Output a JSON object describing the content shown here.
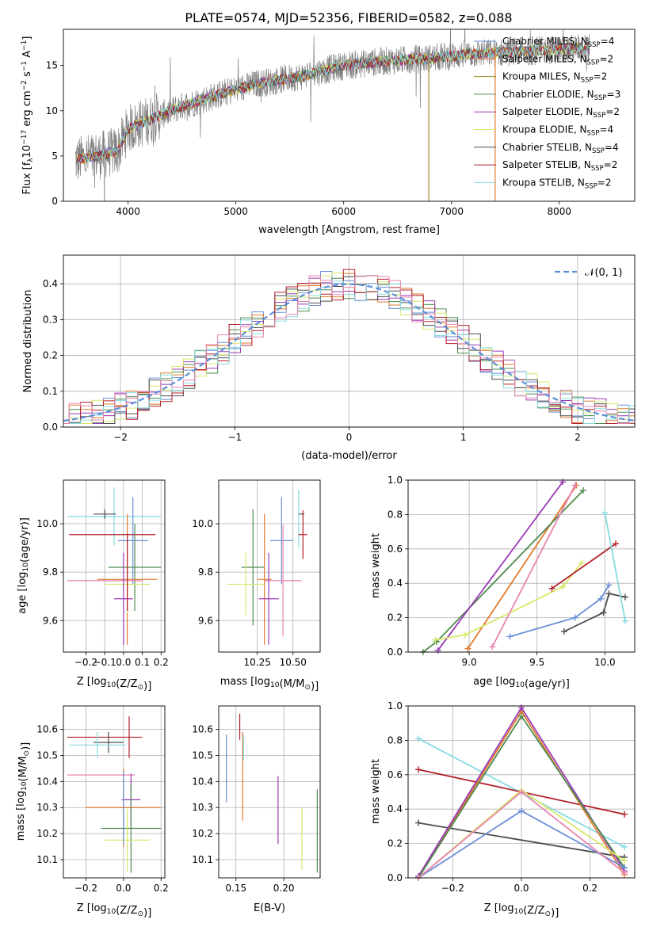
{
  "figure_title": "PLATE=0574, MJD=52356, FIBERID=0582, z=0.088",
  "colors": {
    "chabrier_miles": "#6a8fd8",
    "salpeter_miles": "#e07a2e",
    "kroupa_miles": "#9a8a2a",
    "chabrier_elodie": "#4f8a4f",
    "salpeter_elodie": "#9b3ab8",
    "kroupa_elodie": "#d7e86a",
    "chabrier_stelib": "#4d4d4d",
    "salpeter_stelib": "#b3202a",
    "kroupa_stelib": "#86dbe0",
    "pink_model": "#e884b0",
    "data": "#808080",
    "normal_curve": "#5b8fd9"
  },
  "chart_data": [
    {
      "id": "spectrum",
      "type": "line",
      "xlabel": "wavelength [Angstrom, rest frame]",
      "ylabel": "Flux [f_λ 10^-17 erg cm^-2 s^-1 A^-1]",
      "xlim": [
        3400,
        8700
      ],
      "ylim": [
        0,
        19
      ],
      "xticks": [
        4000,
        5000,
        6000,
        7000,
        8000
      ],
      "yticks": [
        0,
        5,
        10,
        15
      ],
      "continuum": {
        "x": [
          3500,
          3700,
          3900,
          4000,
          4200,
          4500,
          4900,
          5200,
          5600,
          6000,
          6400,
          6800,
          7200,
          7600,
          8000,
          8300
        ],
        "y": [
          4.5,
          5.0,
          5.5,
          8.0,
          9.0,
          10.5,
          12.0,
          13.0,
          13.8,
          15.0,
          15.5,
          15.8,
          16.3,
          16.5,
          16.8,
          17.0
        ]
      },
      "legend": [
        {
          "label": "Chabrier MILES, N",
          "sub": "SSP",
          "suffix": "=4",
          "color_key": "chabrier_miles"
        },
        {
          "label": "Salpeter MILES, N",
          "sub": "SSP",
          "suffix": "=2",
          "color_key": "salpeter_miles"
        },
        {
          "label": "Kroupa MILES, N",
          "sub": "SSP",
          "suffix": "=2",
          "color_key": "kroupa_miles"
        },
        {
          "label": "Chabrier ELODIE, N",
          "sub": "SSP",
          "suffix": "=3",
          "color_key": "chabrier_elodie"
        },
        {
          "label": "Salpeter ELODIE, N",
          "sub": "SSP",
          "suffix": "=2",
          "color_key": "salpeter_elodie"
        },
        {
          "label": "Kroupa ELODIE, N",
          "sub": "SSP",
          "suffix": "=4",
          "color_key": "kroupa_elodie"
        },
        {
          "label": "Chabrier STELIB, N",
          "sub": "SSP",
          "suffix": "=4",
          "color_key": "chabrier_stelib"
        },
        {
          "label": "Salpeter STELIB, N",
          "sub": "SSP",
          "suffix": "=2",
          "color_key": "salpeter_stelib"
        },
        {
          "label": "Kroupa STELIB, N",
          "sub": "SSP",
          "suffix": "=2",
          "color_key": "kroupa_stelib"
        }
      ]
    },
    {
      "id": "residuals",
      "type": "histogram",
      "xlabel": "(data-model)/error",
      "ylabel": "Normed distribution",
      "xlim": [
        -2.5,
        2.5
      ],
      "ylim": [
        0,
        0.48
      ],
      "xticks": [
        -2,
        -1,
        0,
        1,
        2
      ],
      "yticks": [
        0.0,
        0.1,
        0.2,
        0.3,
        0.4
      ],
      "legend_label": "N(0,1)",
      "legend_display": "𝒩(0, 1)",
      "bin_width": 0.1
    },
    {
      "id": "age_vs_Z",
      "type": "errorbar",
      "xlabel": "Z [log10(Z/Z⊙)]",
      "ylabel": "age [log10(age/yr)]",
      "xlim": [
        -0.32,
        0.22
      ],
      "ylim": [
        9.47,
        10.18
      ],
      "xticks": [
        -0.2,
        -0.1,
        0.0,
        0.1,
        0.2
      ],
      "yticks": [
        9.6,
        9.8,
        10.0
      ],
      "points": [
        {
          "c": "kroupa_stelib",
          "x": -0.05,
          "xe": 0.25,
          "y": 10.03,
          "ye": 0.12
        },
        {
          "c": "chabrier_stelib",
          "x": -0.1,
          "xe": 0.06,
          "y": 10.04,
          "ye": 0.02
        },
        {
          "c": "chabrier_miles",
          "x": 0.05,
          "xe": 0.08,
          "y": 9.93,
          "ye": 0.18
        },
        {
          "c": "salpeter_stelib",
          "x": -0.06,
          "xe": 0.23,
          "y": 9.955,
          "ye": 0.0
        },
        {
          "c": "chabrier_elodie",
          "x": 0.06,
          "xe": 0.14,
          "y": 9.82,
          "ye": 0.18
        },
        {
          "c": "salpeter_miles",
          "x": 0.02,
          "xe": 0.16,
          "y": 9.77,
          "ye": 0.27
        },
        {
          "c": "pink_model",
          "x": -0.1,
          "xe": 0.2,
          "y": 9.765,
          "ye": 0.0
        },
        {
          "c": "kroupa_elodie",
          "x": 0.02,
          "xe": 0.12,
          "y": 9.75,
          "ye": 0.12
        },
        {
          "c": "salpeter_elodie",
          "x": 0.0,
          "xe": 0.05,
          "y": 9.69,
          "ye": 0.19
        },
        {
          "c": "salpeter_stelib",
          "x": 0.02,
          "xe": 0.0,
          "y": 9.8,
          "ye": 0.16
        }
      ]
    },
    {
      "id": "age_vs_mass",
      "type": "errorbar",
      "xlabel": "mass [log10(M/M⊙)]",
      "xlim": [
        9.98,
        10.69
      ],
      "ylim": [
        9.47,
        10.18
      ],
      "xticks": [
        10.25,
        10.5
      ],
      "yticks": [
        9.6,
        9.8,
        10.0
      ],
      "points": [
        {
          "c": "kroupa_stelib",
          "x": 10.54,
          "xe": 0.0,
          "y": 10.02,
          "ye": 0.12
        },
        {
          "c": "chabrier_stelib",
          "x": 10.56,
          "xe": 0.02,
          "y": 10.04,
          "ye": 0.0
        },
        {
          "c": "salpeter_stelib",
          "x": 10.57,
          "xe": 0.03,
          "y": 9.955,
          "ye": 0.1
        },
        {
          "c": "chabrier_miles",
          "x": 10.42,
          "xe": 0.08,
          "y": 9.93,
          "ye": 0.18
        },
        {
          "c": "chabrier_elodie",
          "x": 10.22,
          "xe": 0.08,
          "y": 9.82,
          "ye": 0.24
        },
        {
          "c": "salpeter_miles",
          "x": 10.3,
          "xe": 0.05,
          "y": 9.77,
          "ye": 0.27
        },
        {
          "c": "pink_model",
          "x": 10.43,
          "xe": 0.13,
          "y": 9.765,
          "ye": 0.23
        },
        {
          "c": "kroupa_elodie",
          "x": 10.17,
          "xe": 0.13,
          "y": 9.75,
          "ye": 0.13
        },
        {
          "c": "salpeter_elodie",
          "x": 10.33,
          "xe": 0.07,
          "y": 9.69,
          "ye": 0.19
        }
      ]
    },
    {
      "id": "mass_weight_vs_age",
      "type": "line",
      "xlabel": "age [log10(age/yr)]",
      "ylabel": "mass weight",
      "xlim": [
        8.55,
        10.22
      ],
      "ylim": [
        0.0,
        1.0
      ],
      "xticks": [
        9.0,
        9.5,
        10.0
      ],
      "yticks": [
        0.0,
        0.2,
        0.4,
        0.6,
        0.8,
        1.0
      ],
      "series": [
        {
          "c": "chabrier_miles",
          "x": [
            9.3,
            9.78,
            9.97,
            10.03
          ],
          "y": [
            0.09,
            0.2,
            0.31,
            0.39
          ]
        },
        {
          "c": "salpeter_miles",
          "x": [
            8.99,
            9.79
          ],
          "y": [
            0.02,
            0.97
          ]
        },
        {
          "c": "chabrier_elodie",
          "x": [
            8.66,
            8.76,
            9.84
          ],
          "y": [
            0.0,
            0.06,
            0.94
          ]
        },
        {
          "c": "salpeter_elodie",
          "x": [
            8.77,
            9.69
          ],
          "y": [
            0.01,
            0.99
          ]
        },
        {
          "c": "kroupa_elodie",
          "x": [
            8.75,
            8.97,
            9.69,
            9.83
          ],
          "y": [
            0.07,
            0.1,
            0.38,
            0.52
          ]
        },
        {
          "c": "chabrier_stelib",
          "x": [
            9.7,
            9.99,
            10.03,
            10.15
          ],
          "y": [
            0.12,
            0.23,
            0.34,
            0.32
          ]
        },
        {
          "c": "salpeter_stelib",
          "x": [
            9.61,
            10.08
          ],
          "y": [
            0.37,
            0.63
          ]
        },
        {
          "c": "kroupa_stelib",
          "x": [
            10.0,
            10.15
          ],
          "y": [
            0.81,
            0.18
          ]
        },
        {
          "c": "pink_model",
          "x": [
            9.17,
            9.78
          ],
          "y": [
            0.03,
            0.97
          ]
        }
      ]
    },
    {
      "id": "mass_vs_Z",
      "type": "errorbar",
      "xlabel": "Z [log10(Z/Z⊙)]",
      "ylabel": "mass [log10(M/M⊙)]",
      "xlim": [
        -0.32,
        0.22
      ],
      "ylim": [
        10.03,
        10.69
      ],
      "xticks": [
        -0.2,
        0.0,
        0.2
      ],
      "yticks": [
        10.1,
        10.2,
        10.3,
        10.4,
        10.5,
        10.6
      ],
      "points": [
        {
          "c": "salpeter_stelib",
          "x": -0.1,
          "xe": 0.2,
          "y": 10.57,
          "ye": 0.0
        },
        {
          "c": "salpeter_stelib",
          "x": 0.03,
          "xe": 0.0,
          "y": 10.57,
          "ye": 0.08
        },
        {
          "c": "chabrier_stelib",
          "x": -0.08,
          "xe": 0.08,
          "y": 10.55,
          "ye": 0.04
        },
        {
          "c": "kroupa_stelib",
          "x": -0.14,
          "xe": 0.15,
          "y": 10.54,
          "ye": 0.05
        },
        {
          "c": "pink_model",
          "x": -0.12,
          "xe": 0.18,
          "y": 10.425,
          "ye": 0.0
        },
        {
          "c": "salpeter_elodie",
          "x": 0.04,
          "xe": 0.05,
          "y": 10.33,
          "ye": 0.1
        },
        {
          "c": "salpeter_miles",
          "x": 0.0,
          "xe": 0.2,
          "y": 10.3,
          "ye": 0.15
        },
        {
          "c": "chabrier_elodie",
          "x": 0.04,
          "xe": 0.16,
          "y": 10.22,
          "ye": 0.17
        },
        {
          "c": "kroupa_elodie",
          "x": 0.02,
          "xe": 0.12,
          "y": 10.175,
          "ye": 0.12
        },
        {
          "c": "chabrier_miles",
          "x": 0.0,
          "xe": 0.0,
          "y": 10.3,
          "ye": 0.14
        }
      ]
    },
    {
      "id": "mass_vs_ebv",
      "type": "errorbar",
      "xlabel": "E(B-V)",
      "xlim": [
        0.132,
        0.238
      ],
      "ylim": [
        10.03,
        10.69
      ],
      "xticks": [
        0.15,
        0.2
      ],
      "yticks": [
        10.1,
        10.2,
        10.3,
        10.4,
        10.5,
        10.6
      ],
      "points": [
        {
          "c": "chabrier_miles",
          "x": 0.14,
          "ye": 0.13,
          "y": 10.45
        },
        {
          "c": "salpeter_stelib",
          "x": 0.154,
          "ye": 0.05,
          "y": 10.61
        },
        {
          "c": "salpeter_miles",
          "x": 0.157,
          "ye": 0.17,
          "y": 10.42
        },
        {
          "c": "kroupa_stelib",
          "x": 0.158,
          "ye": 0.05,
          "y": 10.53
        },
        {
          "c": "salpeter_elodie",
          "x": 0.194,
          "ye": 0.13,
          "y": 10.29
        },
        {
          "c": "kroupa_elodie",
          "x": 0.219,
          "ye": 0.12,
          "y": 10.18
        },
        {
          "c": "chabrier_elodie",
          "x": 0.235,
          "ye": 0.16,
          "y": 10.21
        }
      ]
    },
    {
      "id": "mass_weight_vs_Z",
      "type": "line",
      "xlabel": "Z [log10(Z/Z⊙)]",
      "ylabel": "mass weight",
      "xlim": [
        -0.33,
        0.33
      ],
      "ylim": [
        0.0,
        1.0
      ],
      "xticks": [
        -0.2,
        0.0,
        0.2
      ],
      "yticks": [
        0.0,
        0.2,
        0.4,
        0.6,
        0.8,
        1.0
      ],
      "series": [
        {
          "c": "kroupa_stelib",
          "x": [
            -0.3,
            0.3
          ],
          "y": [
            0.81,
            0.18
          ]
        },
        {
          "c": "salpeter_stelib",
          "x": [
            -0.3,
            0.3
          ],
          "y": [
            0.63,
            0.37
          ]
        },
        {
          "c": "chabrier_stelib",
          "x": [
            -0.3,
            0.3
          ],
          "y": [
            0.32,
            0.12
          ]
        },
        {
          "c": "salpeter_miles",
          "x": [
            -0.3,
            0.0,
            0.3
          ],
          "y": [
            0.0,
            0.97,
            0.02
          ]
        },
        {
          "c": "salpeter_elodie",
          "x": [
            -0.3,
            0.0,
            0.3
          ],
          "y": [
            0.01,
            0.99,
            0.04
          ]
        },
        {
          "c": "chabrier_elodie",
          "x": [
            -0.3,
            0.0,
            0.3
          ],
          "y": [
            0.0,
            0.94,
            0.06
          ]
        },
        {
          "c": "kroupa_elodie",
          "x": [
            -0.3,
            0.0,
            0.3
          ],
          "y": [
            0.0,
            0.51,
            0.1
          ]
        },
        {
          "c": "chabrier_miles",
          "x": [
            -0.3,
            0.0,
            0.3
          ],
          "y": [
            0.0,
            0.39,
            0.06
          ]
        },
        {
          "c": "pink_model",
          "x": [
            -0.3,
            0.0,
            0.3
          ],
          "y": [
            0.0,
            0.5,
            0.03
          ]
        }
      ]
    }
  ]
}
